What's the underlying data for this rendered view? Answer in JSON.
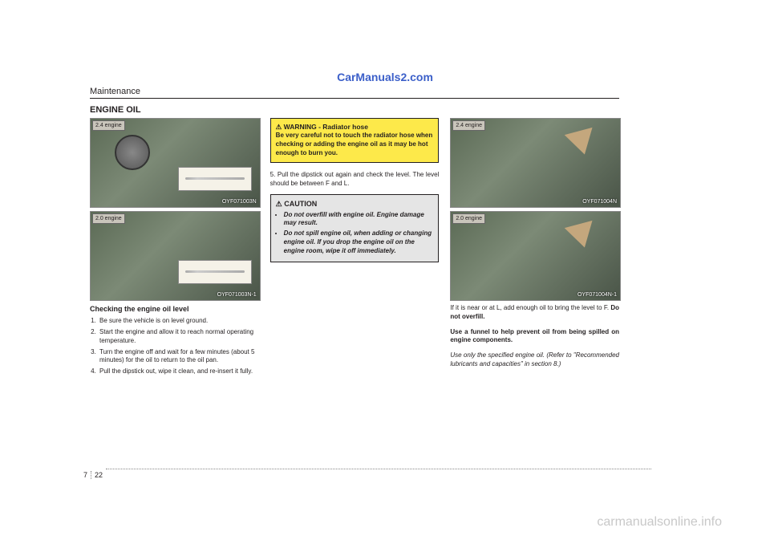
{
  "watermark_top": "CarManuals2.com",
  "watermark_bottom": "carmanualsonline.info",
  "header": "Maintenance",
  "section_title": "ENGINE OIL",
  "page_chapter": "7",
  "page_number": "22",
  "images": {
    "img1": {
      "tag": "2.4 engine",
      "code": "OYF071003N"
    },
    "img2": {
      "tag": "2.0 engine",
      "code": "OYF071003N-1"
    },
    "img3": {
      "tag": "2.4 engine",
      "code": "OYF071004N"
    },
    "img4": {
      "tag": "2.0 engine",
      "code": "OYF071004N-1"
    }
  },
  "col1": {
    "subheading": "Checking the engine oil level",
    "steps": [
      "Be sure the vehicle is on level ground.",
      "Start the engine and allow it to reach normal operating temperature.",
      "Turn the engine off and wait for a few minutes (about 5 minutes) for the oil to return to the oil pan.",
      "Pull the dipstick out, wipe it clean, and re-insert it fully."
    ]
  },
  "col2": {
    "warning": {
      "title": "WARNING - Radiator hose",
      "body": "Be very careful not to touch the radiator hose when checking or adding the engine oil as it may be hot enough to burn you."
    },
    "step5": "5. Pull the dipstick out again and check the level. The level should be between F and L.",
    "caution": {
      "title": "CAUTION",
      "items": [
        "Do not overfill with engine oil. Engine damage may result.",
        "Do not spill engine oil, when adding or changing engine oil. If you drop the engine oil on the engine room, wipe it off immediately."
      ]
    }
  },
  "col3": {
    "p1a": "If it is near or at L, add enough oil to bring the level to F. ",
    "p1b": "Do not overfill.",
    "p2": "Use a funnel to help prevent oil from being spilled on engine components.",
    "p3": "Use only the specified engine oil. (Refer to \"Recommended lubricants and capacities\" in section 8.)"
  }
}
